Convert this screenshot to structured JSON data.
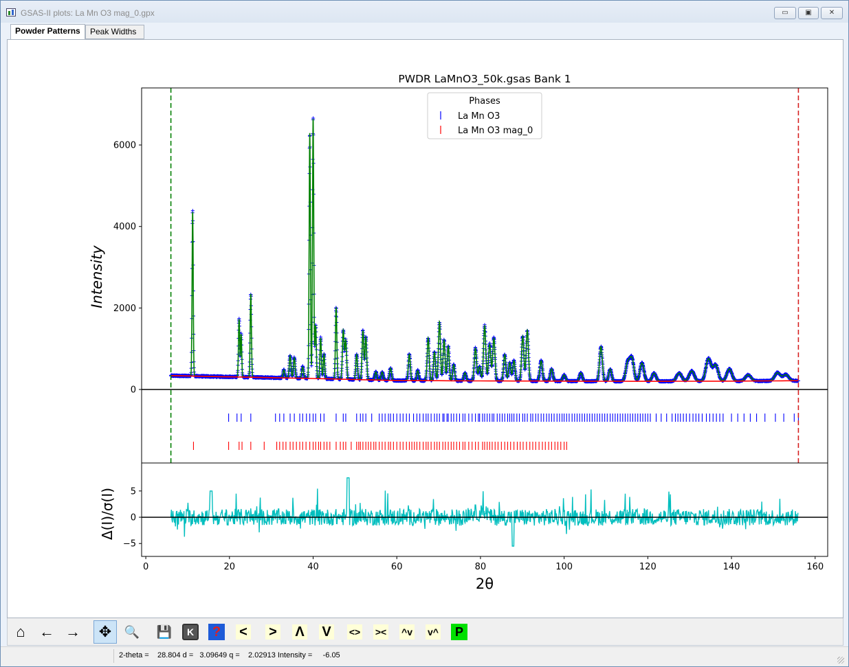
{
  "window": {
    "title": "GSAS-II plots: La Mn O3 mag_0.gpx",
    "minimize_glyph": "▭",
    "restore_glyph": "▣",
    "close_glyph": "✕"
  },
  "tabs": [
    {
      "label": "Powder Patterns",
      "active": true
    },
    {
      "label": "Peak Widths",
      "active": false
    }
  ],
  "toolbar": {
    "buttons": [
      {
        "name": "home-icon",
        "glyph": "⌂"
      },
      {
        "name": "back-arrow-icon",
        "glyph": "←"
      },
      {
        "name": "forward-arrow-icon",
        "glyph": "→"
      },
      {
        "name": "pan-icon",
        "glyph": "✥"
      },
      {
        "name": "zoom-icon",
        "glyph": "🔍"
      },
      {
        "name": "save-icon",
        "glyph": "💾"
      },
      {
        "name": "k-key-icon",
        "glyph": "K"
      },
      {
        "name": "help-icon",
        "glyph": "?"
      },
      {
        "name": "shift-left-icon",
        "glyph": "<"
      },
      {
        "name": "shift-right-icon",
        "glyph": ">"
      },
      {
        "name": "shift-up-icon",
        "glyph": "Λ"
      },
      {
        "name": "shift-down-icon",
        "glyph": "V"
      },
      {
        "name": "expand-horizontal-icon",
        "glyph": "<>"
      },
      {
        "name": "shrink-horizontal-icon",
        "glyph": "><"
      },
      {
        "name": "expand-vertical-icon",
        "glyph": "^v"
      },
      {
        "name": "shrink-vertical-icon",
        "glyph": "v^"
      },
      {
        "name": "p-key-icon",
        "glyph": "P"
      }
    ]
  },
  "status": {
    "text": "2-theta =    28.804 d =   3.09649 q =    2.02913 Intensity =     -6.05"
  },
  "chart_data": {
    "type": "line",
    "title": "PWDR LaMnO3_50k.gsas Bank 1",
    "xlabel": "2θ",
    "ylabel": "Intensity",
    "ylabel_diff": "Δ(I)/σ(I)",
    "xlim": [
      -1,
      163
    ],
    "ylim": [
      0,
      7400
    ],
    "diff_ylim": [
      -6,
      8.5
    ],
    "x_ticks": [
      0,
      20,
      40,
      60,
      80,
      100,
      120,
      140,
      160
    ],
    "y_ticks": [
      0,
      2000,
      4000,
      6000
    ],
    "diff_ticks": [
      -5,
      0,
      5
    ],
    "limits": {
      "low": 6.0,
      "high": 156.0
    },
    "legend": {
      "title": "Phases",
      "placement": "top-center",
      "entries": [
        "La Mn O3",
        "La Mn O3 mag_0"
      ]
    },
    "colors": {
      "observed": "#0000ff",
      "calculated": "#008000",
      "background": "#ff0000",
      "difference": "#00bebe",
      "phase1": "#0000ff",
      "phase2": "#ff0000",
      "low_limit": "#008000",
      "high_limit": "#d62020"
    },
    "background_curve": {
      "x": [
        6,
        20,
        40,
        60,
        80,
        100,
        120,
        140,
        156
      ],
      "y": [
        340,
        310,
        270,
        220,
        210,
        205,
        200,
        205,
        215
      ]
    },
    "peaks": [
      {
        "x": 11.2,
        "h": 4050,
        "w": 0.2
      },
      {
        "x": 22.3,
        "h": 1420,
        "w": 0.22
      },
      {
        "x": 22.8,
        "h": 1050,
        "w": 0.2
      },
      {
        "x": 25.1,
        "h": 2050,
        "w": 0.22
      },
      {
        "x": 33.0,
        "h": 200,
        "w": 0.3
      },
      {
        "x": 34.5,
        "h": 550,
        "w": 0.3
      },
      {
        "x": 35.5,
        "h": 500,
        "w": 0.3
      },
      {
        "x": 37.5,
        "h": 280,
        "w": 0.3
      },
      {
        "x": 39.2,
        "h": 6050,
        "w": 0.22
      },
      {
        "x": 40.0,
        "h": 6400,
        "w": 0.22
      },
      {
        "x": 40.6,
        "h": 1300,
        "w": 0.25
      },
      {
        "x": 41.8,
        "h": 1000,
        "w": 0.25
      },
      {
        "x": 42.6,
        "h": 600,
        "w": 0.25
      },
      {
        "x": 45.5,
        "h": 1750,
        "w": 0.25
      },
      {
        "x": 47.2,
        "h": 1200,
        "w": 0.3
      },
      {
        "x": 47.8,
        "h": 950,
        "w": 0.3
      },
      {
        "x": 50.4,
        "h": 620,
        "w": 0.3
      },
      {
        "x": 51.9,
        "h": 1200,
        "w": 0.3
      },
      {
        "x": 52.6,
        "h": 1050,
        "w": 0.3
      },
      {
        "x": 55.0,
        "h": 200,
        "w": 0.35
      },
      {
        "x": 56.5,
        "h": 200,
        "w": 0.35
      },
      {
        "x": 58.5,
        "h": 300,
        "w": 0.35
      },
      {
        "x": 63.0,
        "h": 650,
        "w": 0.35
      },
      {
        "x": 65.0,
        "h": 250,
        "w": 0.35
      },
      {
        "x": 67.5,
        "h": 1050,
        "w": 0.35
      },
      {
        "x": 69.0,
        "h": 700,
        "w": 0.35
      },
      {
        "x": 70.2,
        "h": 1450,
        "w": 0.35
      },
      {
        "x": 71.3,
        "h": 1000,
        "w": 0.35
      },
      {
        "x": 72.3,
        "h": 850,
        "w": 0.35
      },
      {
        "x": 73.6,
        "h": 400,
        "w": 0.35
      },
      {
        "x": 76.3,
        "h": 200,
        "w": 0.4
      },
      {
        "x": 78.8,
        "h": 800,
        "w": 0.4
      },
      {
        "x": 79.8,
        "h": 350,
        "w": 0.4
      },
      {
        "x": 81.0,
        "h": 1350,
        "w": 0.4
      },
      {
        "x": 82.2,
        "h": 900,
        "w": 0.4
      },
      {
        "x": 83.2,
        "h": 1050,
        "w": 0.4
      },
      {
        "x": 85.8,
        "h": 650,
        "w": 0.4
      },
      {
        "x": 87.0,
        "h": 450,
        "w": 0.4
      },
      {
        "x": 88.0,
        "h": 500,
        "w": 0.4
      },
      {
        "x": 90.1,
        "h": 1100,
        "w": 0.4
      },
      {
        "x": 91.2,
        "h": 1250,
        "w": 0.4
      },
      {
        "x": 94.5,
        "h": 500,
        "w": 0.45
      },
      {
        "x": 97.0,
        "h": 300,
        "w": 0.45
      },
      {
        "x": 100.0,
        "h": 150,
        "w": 0.5
      },
      {
        "x": 104.0,
        "h": 200,
        "w": 0.5
      },
      {
        "x": 108.8,
        "h": 850,
        "w": 0.5
      },
      {
        "x": 111.0,
        "h": 300,
        "w": 0.5
      },
      {
        "x": 115.2,
        "h": 450,
        "w": 0.7
      },
      {
        "x": 116.2,
        "h": 550,
        "w": 0.7
      },
      {
        "x": 118.6,
        "h": 450,
        "w": 0.7
      },
      {
        "x": 121.5,
        "h": 200,
        "w": 0.7
      },
      {
        "x": 127.5,
        "h": 200,
        "w": 0.9
      },
      {
        "x": 130.5,
        "h": 250,
        "w": 0.9
      },
      {
        "x": 134.5,
        "h": 550,
        "w": 0.9
      },
      {
        "x": 136.2,
        "h": 400,
        "w": 0.9
      },
      {
        "x": 139.5,
        "h": 300,
        "w": 0.9
      },
      {
        "x": 144.0,
        "h": 150,
        "w": 1.0
      },
      {
        "x": 151.0,
        "h": 200,
        "w": 1.0
      },
      {
        "x": 153.0,
        "h": 150,
        "w": 1.0
      }
    ],
    "phase1_reflections": [
      19.8,
      21.8,
      22.8,
      25.1,
      31.0,
      32.0,
      33.0,
      34.5,
      35.5,
      36.8,
      37.5,
      38.4,
      39.2,
      40.0,
      40.6,
      41.8,
      42.6,
      45.5,
      47.2,
      47.8,
      50.4,
      51.3,
      51.9,
      52.6,
      54.0,
      55.8,
      56.5,
      57.2,
      58.0,
      58.5,
      59.2,
      60.0,
      60.8,
      61.5,
      62.3,
      63.0,
      64.0,
      64.8,
      65.5,
      66.3,
      67.0,
      67.5,
      68.2,
      69.0,
      69.6,
      70.2,
      71.0,
      71.3,
      72.0,
      72.3,
      73.0,
      73.6,
      74.3,
      75.0,
      75.8,
      76.3,
      77.2,
      78.0,
      78.8,
      79.5,
      79.8,
      80.5,
      81.0,
      81.6,
      82.2,
      82.8,
      83.2,
      84.0,
      84.6,
      85.2,
      85.8,
      86.5,
      87.0,
      87.5,
      88.0,
      88.7,
      89.3,
      90.1,
      90.6,
      91.2,
      92.0,
      92.5,
      93.2,
      93.8,
      94.5,
      95.1,
      95.8,
      96.4,
      97.0,
      97.6,
      98.3,
      98.9,
      99.5,
      100.0,
      100.6,
      101.2,
      101.9,
      102.5,
      103.1,
      103.7,
      104.3,
      104.9,
      105.5,
      106.1,
      106.7,
      107.3,
      107.9,
      108.5,
      109.1,
      109.7,
      110.3,
      111.0,
      111.6,
      112.2,
      112.8,
      113.4,
      114.0,
      114.6,
      115.2,
      115.8,
      116.4,
      117.0,
      117.6,
      118.2,
      118.8,
      119.4,
      120.0,
      120.6,
      122.0,
      123.2,
      124.5,
      125.8,
      126.6,
      127.2,
      127.8,
      128.5,
      129.2,
      130.0,
      130.8,
      131.5,
      132.2,
      133.0,
      134.0,
      134.8,
      135.6,
      136.4,
      137.2,
      138.0,
      140.0,
      141.5,
      143.0,
      144.5,
      146.0,
      148.0,
      150.5,
      152.5,
      155.0,
      156.0
    ],
    "phase2_reflections": [
      11.4,
      19.8,
      22.3,
      23.0,
      25.1,
      28.3,
      31.3,
      32.0,
      32.8,
      33.5,
      34.5,
      35.2,
      36.0,
      36.8,
      37.5,
      38.3,
      39.2,
      40.0,
      40.6,
      41.3,
      41.8,
      42.6,
      43.3,
      44.0,
      45.5,
      46.5,
      47.2,
      47.8,
      49.1,
      50.4,
      50.9,
      51.3,
      51.9,
      52.6,
      53.2,
      53.8,
      54.5,
      55.0,
      55.8,
      56.5,
      57.2,
      58.0,
      58.5,
      59.2,
      60.0,
      60.8,
      61.5,
      62.3,
      63.0,
      63.6,
      64.2,
      64.8,
      65.5,
      66.3,
      67.0,
      67.5,
      68.2,
      69.0,
      69.6,
      70.2,
      71.0,
      71.6,
      72.3,
      73.0,
      73.6,
      74.3,
      75.0,
      75.8,
      76.3,
      77.2,
      78.0,
      78.8,
      79.5,
      80.5,
      81.0,
      81.6,
      82.2,
      82.8,
      83.5,
      84.2,
      85.0,
      85.8,
      86.5,
      87.2,
      88.0,
      88.8,
      89.5,
      90.2,
      91.0,
      91.8,
      92.5,
      93.2,
      94.0,
      94.8,
      95.5,
      96.3,
      97.0,
      97.8,
      98.5,
      99.2,
      100.0,
      100.6
    ]
  }
}
